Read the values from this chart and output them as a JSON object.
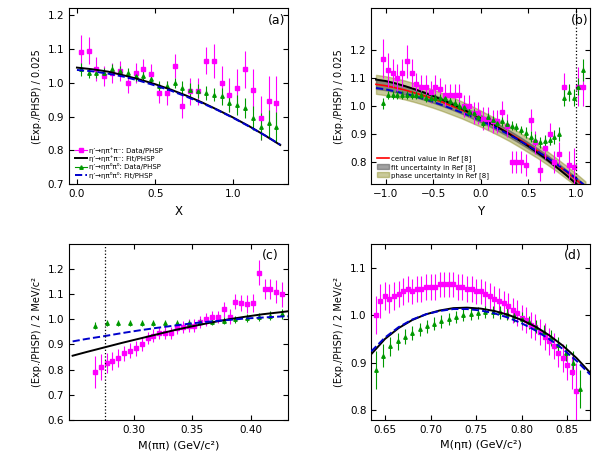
{
  "panel_a": {
    "label": "(a)",
    "xlabel": "X",
    "ylabel": "(Exp./PHSP) / 0.025",
    "xlim": [
      -0.05,
      1.35
    ],
    "ylim": [
      0.7,
      1.22
    ],
    "yticks": [
      0.7,
      0.8,
      0.9,
      1.0,
      1.1,
      1.2
    ],
    "xticks": [
      0.0,
      0.5,
      1.0
    ],
    "magenta_x": [
      0.025,
      0.075,
      0.125,
      0.175,
      0.225,
      0.275,
      0.325,
      0.375,
      0.425,
      0.475,
      0.525,
      0.575,
      0.625,
      0.675,
      0.725,
      0.775,
      0.825,
      0.875,
      0.925,
      0.975,
      1.025,
      1.075,
      1.125,
      1.175,
      1.225,
      1.275
    ],
    "magenta_y": [
      1.09,
      1.095,
      1.04,
      1.02,
      1.03,
      1.035,
      1.0,
      1.03,
      1.04,
      1.025,
      0.97,
      0.97,
      1.05,
      0.93,
      0.975,
      0.975,
      1.065,
      1.065,
      1.0,
      0.965,
      0.985,
      1.04,
      0.98,
      0.895,
      0.945,
      0.94
    ],
    "magenta_yerr": [
      0.05,
      0.04,
      0.035,
      0.03,
      0.03,
      0.03,
      0.03,
      0.03,
      0.03,
      0.03,
      0.03,
      0.035,
      0.035,
      0.035,
      0.04,
      0.04,
      0.04,
      0.05,
      0.05,
      0.05,
      0.055,
      0.055,
      0.06,
      0.065,
      0.075,
      0.08
    ],
    "green_x": [
      0.025,
      0.075,
      0.125,
      0.175,
      0.225,
      0.275,
      0.325,
      0.375,
      0.425,
      0.475,
      0.525,
      0.575,
      0.625,
      0.675,
      0.725,
      0.775,
      0.825,
      0.875,
      0.925,
      0.975,
      1.025,
      1.075,
      1.125,
      1.175,
      1.225,
      1.275
    ],
    "green_y": [
      1.04,
      1.03,
      1.03,
      1.03,
      1.04,
      1.035,
      1.03,
      1.02,
      1.02,
      1.01,
      0.99,
      0.99,
      1.0,
      0.985,
      0.98,
      0.975,
      0.97,
      0.965,
      0.96,
      0.94,
      0.935,
      0.925,
      0.895,
      0.87,
      0.88,
      0.87
    ],
    "green_yerr": [
      0.02,
      0.015,
      0.015,
      0.015,
      0.015,
      0.015,
      0.015,
      0.015,
      0.015,
      0.015,
      0.015,
      0.015,
      0.015,
      0.02,
      0.02,
      0.02,
      0.02,
      0.02,
      0.025,
      0.025,
      0.03,
      0.03,
      0.035,
      0.04,
      0.04,
      0.045
    ],
    "black_x": [
      0.0,
      0.1,
      0.2,
      0.3,
      0.4,
      0.5,
      0.6,
      0.7,
      0.8,
      0.9,
      1.0,
      1.1,
      1.2,
      1.3
    ],
    "black_y": [
      1.045,
      1.04,
      1.033,
      1.022,
      1.01,
      0.996,
      0.98,
      0.962,
      0.942,
      0.92,
      0.897,
      0.872,
      0.845,
      0.816
    ],
    "blue_x": [
      0.0,
      0.1,
      0.2,
      0.3,
      0.4,
      0.5,
      0.6,
      0.7,
      0.8,
      0.9,
      1.0,
      1.1,
      1.2,
      1.3
    ],
    "blue_y": [
      1.038,
      1.034,
      1.027,
      1.018,
      1.006,
      0.992,
      0.977,
      0.959,
      0.94,
      0.919,
      0.896,
      0.871,
      0.845,
      0.817
    ]
  },
  "panel_b": {
    "label": "(b)",
    "xlabel": "Y",
    "ylabel": "(Exp./PHSP) / 0.025",
    "xlim": [
      -1.15,
      1.15
    ],
    "ylim": [
      0.72,
      1.35
    ],
    "yticks": [
      0.8,
      0.9,
      1.0,
      1.1,
      1.2
    ],
    "xticks": [
      -1.0,
      -0.5,
      0.0,
      0.5,
      1.0
    ],
    "vline_x": 1.0,
    "magenta_x": [
      -1.025,
      -0.975,
      -0.925,
      -0.875,
      -0.825,
      -0.775,
      -0.725,
      -0.675,
      -0.625,
      -0.575,
      -0.525,
      -0.475,
      -0.425,
      -0.375,
      -0.325,
      -0.275,
      -0.225,
      -0.175,
      -0.125,
      -0.075,
      -0.025,
      0.025,
      0.075,
      0.125,
      0.175,
      0.225,
      0.275,
      0.325,
      0.375,
      0.425,
      0.475,
      0.525,
      0.575,
      0.625,
      0.675,
      0.725,
      0.775,
      0.825,
      0.875,
      0.925,
      0.975,
      1.025,
      1.075
    ],
    "magenta_y": [
      1.17,
      1.13,
      1.12,
      1.1,
      1.12,
      1.16,
      1.12,
      1.08,
      1.07,
      1.07,
      1.05,
      1.07,
      1.06,
      1.04,
      1.04,
      1.04,
      1.04,
      1.0,
      1.0,
      0.975,
      0.975,
      0.955,
      0.955,
      0.945,
      0.945,
      0.98,
      0.93,
      0.8,
      0.8,
      0.8,
      0.79,
      0.95,
      0.87,
      0.77,
      0.85,
      0.9,
      0.8,
      0.83,
      1.07,
      0.79,
      0.78,
      1.07,
      1.07
    ],
    "magenta_yerr": [
      0.07,
      0.06,
      0.05,
      0.05,
      0.05,
      0.06,
      0.05,
      0.04,
      0.04,
      0.04,
      0.04,
      0.04,
      0.04,
      0.04,
      0.04,
      0.04,
      0.04,
      0.04,
      0.04,
      0.04,
      0.04,
      0.04,
      0.04,
      0.04,
      0.04,
      0.04,
      0.04,
      0.04,
      0.04,
      0.04,
      0.04,
      0.04,
      0.04,
      0.04,
      0.04,
      0.04,
      0.04,
      0.04,
      0.05,
      0.05,
      0.07,
      0.07,
      0.07
    ],
    "green_x": [
      -1.025,
      -0.975,
      -0.925,
      -0.875,
      -0.825,
      -0.775,
      -0.725,
      -0.675,
      -0.625,
      -0.575,
      -0.525,
      -0.475,
      -0.425,
      -0.375,
      -0.325,
      -0.275,
      -0.225,
      -0.175,
      -0.125,
      -0.075,
      -0.025,
      0.025,
      0.075,
      0.125,
      0.175,
      0.225,
      0.275,
      0.325,
      0.375,
      0.425,
      0.475,
      0.525,
      0.575,
      0.625,
      0.675,
      0.725,
      0.775,
      0.825,
      0.875,
      0.925,
      0.975,
      1.025,
      1.075
    ],
    "green_y": [
      1.01,
      1.04,
      1.04,
      1.04,
      1.04,
      1.04,
      1.04,
      1.04,
      1.04,
      1.03,
      1.03,
      1.03,
      1.03,
      1.03,
      1.02,
      1.01,
      1.0,
      0.995,
      0.98,
      0.975,
      0.96,
      0.94,
      0.96,
      0.95,
      0.94,
      0.945,
      0.935,
      0.93,
      0.925,
      0.915,
      0.905,
      0.89,
      0.88,
      0.87,
      0.875,
      0.88,
      0.89,
      0.9,
      1.03,
      1.05,
      1.03,
      1.07,
      1.13
    ],
    "green_yerr": [
      0.02,
      0.015,
      0.015,
      0.015,
      0.015,
      0.015,
      0.015,
      0.015,
      0.015,
      0.015,
      0.015,
      0.015,
      0.015,
      0.015,
      0.015,
      0.015,
      0.015,
      0.015,
      0.015,
      0.015,
      0.015,
      0.015,
      0.015,
      0.015,
      0.015,
      0.015,
      0.015,
      0.015,
      0.015,
      0.015,
      0.02,
      0.02,
      0.02,
      0.02,
      0.02,
      0.02,
      0.025,
      0.025,
      0.03,
      0.03,
      0.03,
      0.03,
      0.04
    ],
    "black_x": [
      -1.1,
      -1.0,
      -0.9,
      -0.8,
      -0.7,
      -0.6,
      -0.5,
      -0.4,
      -0.3,
      -0.2,
      -0.1,
      0.0,
      0.1,
      0.2,
      0.3,
      0.4,
      0.5,
      0.6,
      0.7,
      0.8,
      0.9,
      1.0,
      1.1
    ],
    "black_y": [
      1.095,
      1.09,
      1.082,
      1.072,
      1.061,
      1.049,
      1.036,
      1.022,
      1.007,
      0.991,
      0.974,
      0.957,
      0.939,
      0.92,
      0.9,
      0.878,
      0.856,
      0.832,
      0.807,
      0.78,
      0.752,
      0.722,
      0.69
    ],
    "blue_x": [
      -1.1,
      -1.0,
      -0.9,
      -0.8,
      -0.7,
      -0.6,
      -0.5,
      -0.4,
      -0.3,
      -0.2,
      -0.1,
      0.0,
      0.1,
      0.2,
      0.3,
      0.4,
      0.5,
      0.6,
      0.7,
      0.8,
      0.9,
      1.0,
      1.1
    ],
    "blue_y": [
      1.065,
      1.06,
      1.053,
      1.045,
      1.036,
      1.026,
      1.015,
      1.003,
      0.99,
      0.977,
      0.963,
      0.948,
      0.932,
      0.915,
      0.897,
      0.878,
      0.858,
      0.837,
      0.815,
      0.791,
      0.767,
      0.741,
      0.714
    ],
    "red_x": [
      -1.1,
      -1.0,
      -0.9,
      -0.8,
      -0.7,
      -0.6,
      -0.5,
      -0.4,
      -0.3,
      -0.2,
      -0.1,
      0.0,
      0.1,
      0.2,
      0.3,
      0.4,
      0.5,
      0.6,
      0.7,
      0.8,
      0.9,
      1.0,
      1.1
    ],
    "red_y": [
      1.078,
      1.073,
      1.066,
      1.058,
      1.048,
      1.038,
      1.026,
      1.014,
      1.0,
      0.986,
      0.971,
      0.955,
      0.938,
      0.921,
      0.902,
      0.882,
      0.861,
      0.839,
      0.815,
      0.79,
      0.764,
      0.737,
      0.708
    ],
    "gray_band_lower": [
      1.062,
      1.057,
      1.05,
      1.042,
      1.033,
      1.023,
      1.012,
      1.0,
      0.987,
      0.973,
      0.958,
      0.942,
      0.926,
      0.908,
      0.889,
      0.869,
      0.848,
      0.826,
      0.803,
      0.778,
      0.752,
      0.725,
      0.696
    ],
    "gray_band_upper": [
      1.094,
      1.089,
      1.082,
      1.074,
      1.064,
      1.053,
      1.041,
      1.028,
      1.014,
      0.999,
      0.984,
      0.968,
      0.95,
      0.932,
      0.913,
      0.892,
      0.87,
      0.848,
      0.824,
      0.798,
      0.772,
      0.745,
      0.716
    ],
    "olive_band_lower": [
      1.044,
      1.039,
      1.032,
      1.024,
      1.015,
      1.005,
      0.994,
      0.982,
      0.969,
      0.956,
      0.941,
      0.926,
      0.91,
      0.893,
      0.875,
      0.855,
      0.834,
      0.813,
      0.79,
      0.766,
      0.74,
      0.714,
      0.686
    ],
    "olive_band_upper": [
      1.112,
      1.107,
      1.1,
      1.092,
      1.082,
      1.071,
      1.059,
      1.046,
      1.032,
      1.017,
      1.001,
      0.984,
      0.966,
      0.948,
      0.928,
      0.907,
      0.885,
      0.862,
      0.838,
      0.812,
      0.786,
      0.759,
      0.73
    ]
  },
  "panel_c": {
    "label": "(c)",
    "xlabel": "M(ππ) (GeV/c²)",
    "ylabel": "(Exp./PHSP) / 2 MeV/c²",
    "xlim": [
      0.245,
      0.432
    ],
    "ylim": [
      0.6,
      1.3
    ],
    "yticks": [
      0.6,
      0.7,
      0.8,
      0.9,
      1.0,
      1.1,
      1.2
    ],
    "xticks": [
      0.3,
      0.35,
      0.4
    ],
    "vline_x": 0.2756,
    "magenta_x": [
      0.267,
      0.272,
      0.277,
      0.282,
      0.287,
      0.292,
      0.297,
      0.302,
      0.307,
      0.312,
      0.317,
      0.322,
      0.327,
      0.332,
      0.337,
      0.342,
      0.347,
      0.352,
      0.357,
      0.362,
      0.367,
      0.372,
      0.377,
      0.382,
      0.387,
      0.392,
      0.397,
      0.402,
      0.407,
      0.412,
      0.417,
      0.422,
      0.427
    ],
    "magenta_y": [
      0.79,
      0.81,
      0.825,
      0.835,
      0.845,
      0.865,
      0.875,
      0.885,
      0.9,
      0.925,
      0.935,
      0.945,
      0.945,
      0.945,
      0.965,
      0.97,
      0.975,
      0.975,
      0.99,
      1.0,
      1.01,
      1.01,
      1.04,
      1.01,
      1.07,
      1.065,
      1.06,
      1.065,
      1.185,
      1.12,
      1.12,
      1.11,
      1.1
    ],
    "magenta_yerr": [
      0.065,
      0.05,
      0.04,
      0.035,
      0.035,
      0.03,
      0.03,
      0.03,
      0.025,
      0.025,
      0.025,
      0.025,
      0.025,
      0.025,
      0.025,
      0.025,
      0.025,
      0.025,
      0.025,
      0.025,
      0.025,
      0.025,
      0.03,
      0.03,
      0.03,
      0.03,
      0.035,
      0.035,
      0.05,
      0.04,
      0.04,
      0.045,
      0.05
    ],
    "green_x": [
      0.267,
      0.277,
      0.287,
      0.297,
      0.307,
      0.317,
      0.327,
      0.337,
      0.347,
      0.357,
      0.367,
      0.377,
      0.387,
      0.397,
      0.407,
      0.417,
      0.427
    ],
    "green_y": [
      0.975,
      0.985,
      0.985,
      0.985,
      0.985,
      0.985,
      0.985,
      0.985,
      0.987,
      0.99,
      0.99,
      0.995,
      1.0,
      1.005,
      1.01,
      1.015,
      1.02
    ],
    "green_yerr": [
      0.015,
      0.012,
      0.012,
      0.012,
      0.012,
      0.012,
      0.012,
      0.012,
      0.012,
      0.012,
      0.012,
      0.013,
      0.013,
      0.015,
      0.015,
      0.018,
      0.02
    ],
    "black_x": [
      0.248,
      0.26,
      0.275,
      0.29,
      0.305,
      0.32,
      0.335,
      0.35,
      0.365,
      0.38,
      0.395,
      0.41,
      0.425,
      0.432
    ],
    "black_y": [
      0.855,
      0.87,
      0.888,
      0.906,
      0.923,
      0.94,
      0.957,
      0.972,
      0.986,
      0.999,
      1.01,
      1.02,
      1.028,
      1.032
    ],
    "blue_x": [
      0.248,
      0.26,
      0.275,
      0.29,
      0.305,
      0.32,
      0.335,
      0.35,
      0.365,
      0.38,
      0.395,
      0.41,
      0.425,
      0.432
    ],
    "blue_y": [
      0.912,
      0.922,
      0.933,
      0.945,
      0.956,
      0.966,
      0.975,
      0.984,
      0.991,
      0.997,
      1.003,
      1.007,
      1.011,
      1.012
    ]
  },
  "panel_d": {
    "label": "(d)",
    "xlabel": "M(ηπ) (GeV/c²)",
    "ylabel": "(Exp./PHSP) / 2 MeV/c²",
    "xlim": [
      0.635,
      0.875
    ],
    "ylim": [
      0.78,
      1.15
    ],
    "yticks": [
      0.8,
      0.9,
      1.0,
      1.1
    ],
    "xticks": [
      0.65,
      0.7,
      0.75,
      0.8,
      0.85
    ],
    "magenta_x": [
      0.64,
      0.645,
      0.65,
      0.655,
      0.66,
      0.665,
      0.67,
      0.675,
      0.68,
      0.685,
      0.69,
      0.695,
      0.7,
      0.705,
      0.71,
      0.715,
      0.72,
      0.725,
      0.73,
      0.735,
      0.74,
      0.745,
      0.75,
      0.755,
      0.76,
      0.765,
      0.77,
      0.775,
      0.78,
      0.785,
      0.79,
      0.795,
      0.8,
      0.805,
      0.81,
      0.815,
      0.82,
      0.825,
      0.83,
      0.835,
      0.84,
      0.845,
      0.85,
      0.855,
      0.86
    ],
    "magenta_y": [
      1.0,
      1.03,
      1.04,
      1.035,
      1.04,
      1.045,
      1.05,
      1.055,
      1.05,
      1.055,
      1.055,
      1.06,
      1.06,
      1.06,
      1.065,
      1.065,
      1.065,
      1.065,
      1.06,
      1.06,
      1.055,
      1.055,
      1.05,
      1.05,
      1.045,
      1.04,
      1.035,
      1.03,
      1.025,
      1.02,
      1.01,
      1.005,
      0.995,
      0.99,
      0.98,
      0.975,
      0.965,
      0.955,
      0.945,
      0.935,
      0.92,
      0.91,
      0.895,
      0.88,
      0.84
    ],
    "magenta_yerr": [
      0.04,
      0.035,
      0.03,
      0.03,
      0.03,
      0.028,
      0.028,
      0.027,
      0.027,
      0.027,
      0.027,
      0.027,
      0.027,
      0.027,
      0.027,
      0.027,
      0.027,
      0.027,
      0.027,
      0.027,
      0.027,
      0.027,
      0.027,
      0.027,
      0.027,
      0.027,
      0.027,
      0.027,
      0.027,
      0.027,
      0.027,
      0.027,
      0.027,
      0.027,
      0.027,
      0.027,
      0.027,
      0.028,
      0.028,
      0.028,
      0.03,
      0.03,
      0.032,
      0.035,
      0.06
    ],
    "green_x": [
      0.64,
      0.648,
      0.656,
      0.664,
      0.672,
      0.68,
      0.688,
      0.696,
      0.704,
      0.712,
      0.72,
      0.728,
      0.736,
      0.744,
      0.752,
      0.76,
      0.768,
      0.776,
      0.784,
      0.792,
      0.8,
      0.808,
      0.816,
      0.824,
      0.832,
      0.84,
      0.848,
      0.856,
      0.864
    ],
    "green_y": [
      0.885,
      0.915,
      0.935,
      0.945,
      0.955,
      0.963,
      0.97,
      0.977,
      0.982,
      0.987,
      0.992,
      0.996,
      1.0,
      1.003,
      1.005,
      1.007,
      1.007,
      1.006,
      1.003,
      0.998,
      0.993,
      0.985,
      0.976,
      0.965,
      0.952,
      0.938,
      0.921,
      0.9,
      0.845
    ],
    "green_yerr": [
      0.04,
      0.025,
      0.02,
      0.018,
      0.016,
      0.015,
      0.014,
      0.014,
      0.014,
      0.014,
      0.013,
      0.013,
      0.013,
      0.013,
      0.013,
      0.013,
      0.013,
      0.013,
      0.013,
      0.013,
      0.013,
      0.014,
      0.014,
      0.015,
      0.016,
      0.017,
      0.018,
      0.025,
      0.04
    ],
    "black_x": [
      0.635,
      0.65,
      0.665,
      0.68,
      0.695,
      0.71,
      0.725,
      0.74,
      0.755,
      0.77,
      0.785,
      0.8,
      0.815,
      0.83,
      0.845,
      0.86,
      0.875
    ],
    "black_y": [
      0.918,
      0.95,
      0.973,
      0.99,
      1.002,
      1.01,
      1.015,
      1.016,
      1.014,
      1.009,
      1.001,
      0.99,
      0.976,
      0.958,
      0.936,
      0.91,
      0.879
    ],
    "blue_x": [
      0.635,
      0.65,
      0.665,
      0.68,
      0.695,
      0.71,
      0.725,
      0.74,
      0.755,
      0.77,
      0.785,
      0.8,
      0.815,
      0.83,
      0.845,
      0.86,
      0.875
    ],
    "blue_y": [
      0.924,
      0.953,
      0.975,
      0.991,
      1.002,
      1.009,
      1.013,
      1.013,
      1.01,
      1.004,
      0.995,
      0.983,
      0.968,
      0.95,
      0.929,
      0.904,
      0.875
    ]
  },
  "colors": {
    "magenta": "#FF00FF",
    "green": "#009900",
    "black": "#000000",
    "blue": "#0000CC",
    "red": "#FF0000",
    "gray_band": "#555555",
    "olive_band": "#888820"
  },
  "legend_a": [
    "η′→ηπ⁺π⁻: Data/PHSP",
    "η′→ηπ⁺π⁻: Fit/PHSP",
    "η′→ηπ⁰π⁰: Data/PHSP",
    "η′→ηπ⁰π⁰: Fit/PHSP"
  ],
  "legend_b": [
    "central value in Ref [8]",
    "fit uncertainty in Ref [8]",
    "phase uncertainty in Ref [8]"
  ]
}
